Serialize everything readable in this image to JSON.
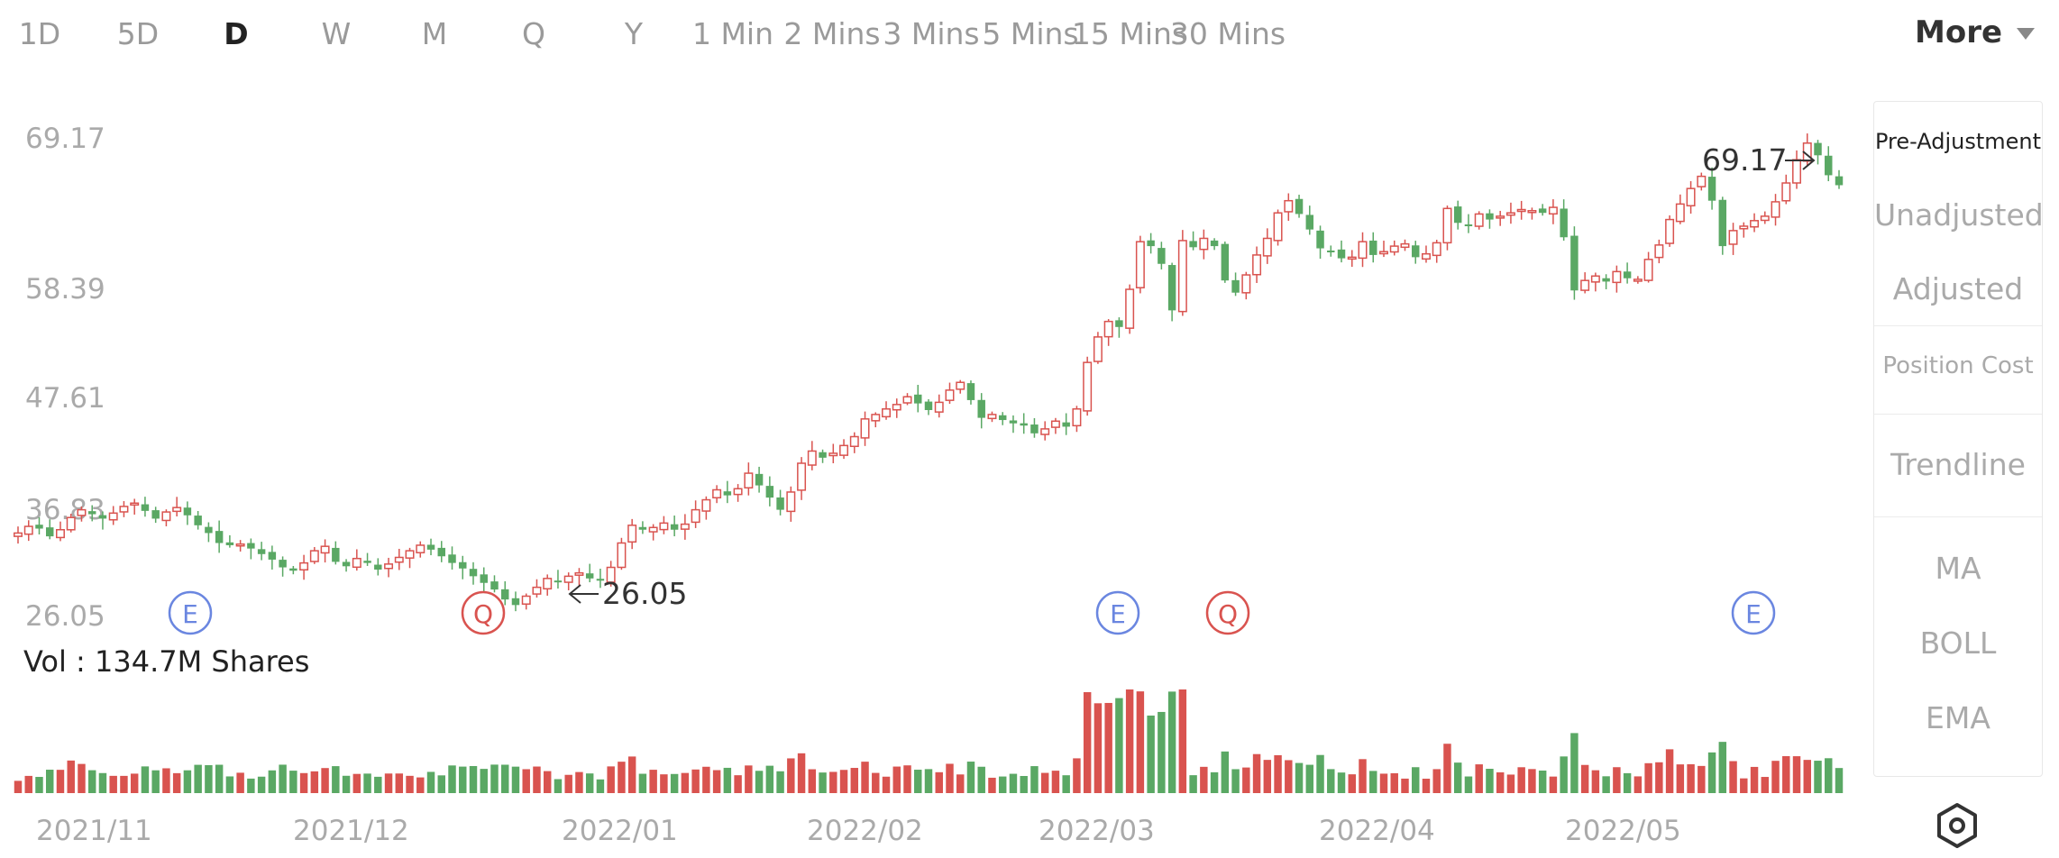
{
  "tabs": [
    {
      "label": "1D",
      "active": false
    },
    {
      "label": "5D",
      "active": false
    },
    {
      "label": "D",
      "active": true
    },
    {
      "label": "W",
      "active": false
    },
    {
      "label": "M",
      "active": false
    },
    {
      "label": "Q",
      "active": false
    },
    {
      "label": "Y",
      "active": false
    },
    {
      "label": "1 Min",
      "active": false
    },
    {
      "label": "2 Mins",
      "active": false
    },
    {
      "label": "3 Mins",
      "active": false
    },
    {
      "label": "5 Mins",
      "active": false
    },
    {
      "label": "15 Mins",
      "active": false
    },
    {
      "label": "30 Mins",
      "active": false
    }
  ],
  "more_label": "More",
  "side_panel": {
    "pre_adjustment": "Pre-Adjustment",
    "unadjusted": "Unadjusted",
    "adjusted": "Adjusted",
    "position_cost": "Position Cost",
    "trendline": "Trendline",
    "ma": "MA",
    "boll": "BOLL",
    "ema": "EMA"
  },
  "volume_label": "Vol  : 134.7M Shares",
  "colors": {
    "up": "#d9534f",
    "down": "#5aa864",
    "earnings": "#6a86e0",
    "quarter": "#d9534f"
  },
  "icons": {
    "settings": "hexagon-settings-icon",
    "earnings": "E",
    "quarter": "Q"
  },
  "chart_data": {
    "type": "candlestick",
    "y_ticks": [
      69.17,
      58.39,
      47.61,
      36.83,
      26.05
    ],
    "ylim": [
      26.05,
      69.17
    ],
    "x_labels": [
      "2021/11",
      "2021/12",
      "2022/01",
      "2022/02",
      "2022/03",
      "2022/04",
      "2022/05"
    ],
    "high_marker": {
      "value": "69.17"
    },
    "low_marker": {
      "value": "26.05"
    },
    "event_markers": [
      {
        "type": "E",
        "date": "2021/11/18"
      },
      {
        "type": "Q",
        "date": "2021/12/16"
      },
      {
        "type": "E",
        "date": "2022/02/24"
      },
      {
        "type": "Q",
        "date": "2022/03/08"
      },
      {
        "type": "E",
        "date": "2022/05/20"
      }
    ],
    "closes": [
      33.5,
      34.1,
      33.9,
      33.2,
      33.8,
      34.9,
      35.6,
      35.2,
      34.8,
      35.3,
      35.9,
      36.2,
      35.5,
      34.8,
      35.4,
      35.8,
      35.1,
      34.2,
      33.5,
      32.6,
      32.4,
      32.5,
      32.1,
      31.6,
      31.1,
      30.4,
      30.1,
      30.8,
      31.9,
      32.3,
      30.9,
      30.5,
      31.2,
      30.8,
      30.2,
      30.7,
      31.3,
      31.9,
      32.4,
      32.0,
      31.4,
      30.8,
      30.3,
      29.6,
      29.0,
      28.4,
      27.5,
      27.0,
      27.8,
      28.6,
      29.4,
      29.1,
      29.6,
      29.9,
      29.4,
      29.2,
      30.4,
      32.6,
      34.2,
      33.8,
      34.0,
      34.4,
      33.8,
      34.3,
      35.6,
      36.5,
      37.4,
      36.9,
      37.5,
      38.9,
      37.8,
      36.7,
      35.6,
      37.2,
      39.8,
      40.9,
      40.3,
      40.7,
      41.4,
      42.2,
      43.8,
      44.2,
      44.7,
      45.1,
      45.8,
      45.2,
      44.6,
      45.3,
      46.4,
      47.1,
      45.5,
      43.9,
      44.2,
      43.7,
      43.4,
      43.2,
      42.5,
      42.9,
      43.6,
      43.1,
      44.7,
      48.9,
      51.2,
      52.6,
      52.1,
      55.5,
      59.8,
      59.4,
      57.8,
      53.6,
      59.9,
      59.3,
      60.1,
      59.4,
      56.3,
      55.2,
      56.8,
      58.6,
      60.1,
      62.4,
      63.5,
      62.3,
      60.9,
      59.2,
      58.9,
      58.3,
      58.4,
      59.8,
      58.6,
      58.9,
      59.4,
      59.6,
      58.4,
      58.7,
      59.7,
      62.8,
      61.5,
      61.2,
      62.3,
      61.8,
      62.1,
      62.4,
      62.7,
      62.6,
      62.4,
      62.9,
      60.2,
      55.4,
      56.3,
      56.7,
      56.2,
      57.1,
      56.5,
      56.4,
      58.2,
      59.5,
      61.8,
      63.2,
      64.6,
      65.7,
      63.5,
      59.4,
      60.8,
      61.2,
      61.7,
      62.1,
      63.4,
      65.1,
      67.2,
      68.7,
      67.6,
      65.8,
      64.9
    ]
  }
}
